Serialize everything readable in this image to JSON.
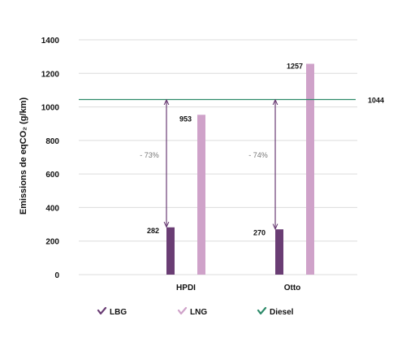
{
  "chart_data": {
    "type": "bar",
    "categories": [
      "HPDI",
      "Otto"
    ],
    "series": [
      {
        "name": "LBG",
        "values": [
          282,
          270
        ],
        "color": "#6a3d74"
      },
      {
        "name": "LNG",
        "values": [
          953,
          1257
        ],
        "color": "#cfa2c9"
      }
    ],
    "reference_line": {
      "name": "Diesel",
      "value": 1044,
      "color": "#2e8b6a"
    },
    "reductions": [
      "- 73%",
      "- 74%"
    ],
    "ylabel": "Emissions de eqCO₂ (g/km)",
    "ylim": [
      0,
      1400
    ],
    "yticks": [
      0,
      200,
      400,
      600,
      800,
      1000,
      1200,
      1400
    ],
    "grid": true,
    "legend_position": "bottom-left",
    "arrow_color": "#6a3d74"
  }
}
